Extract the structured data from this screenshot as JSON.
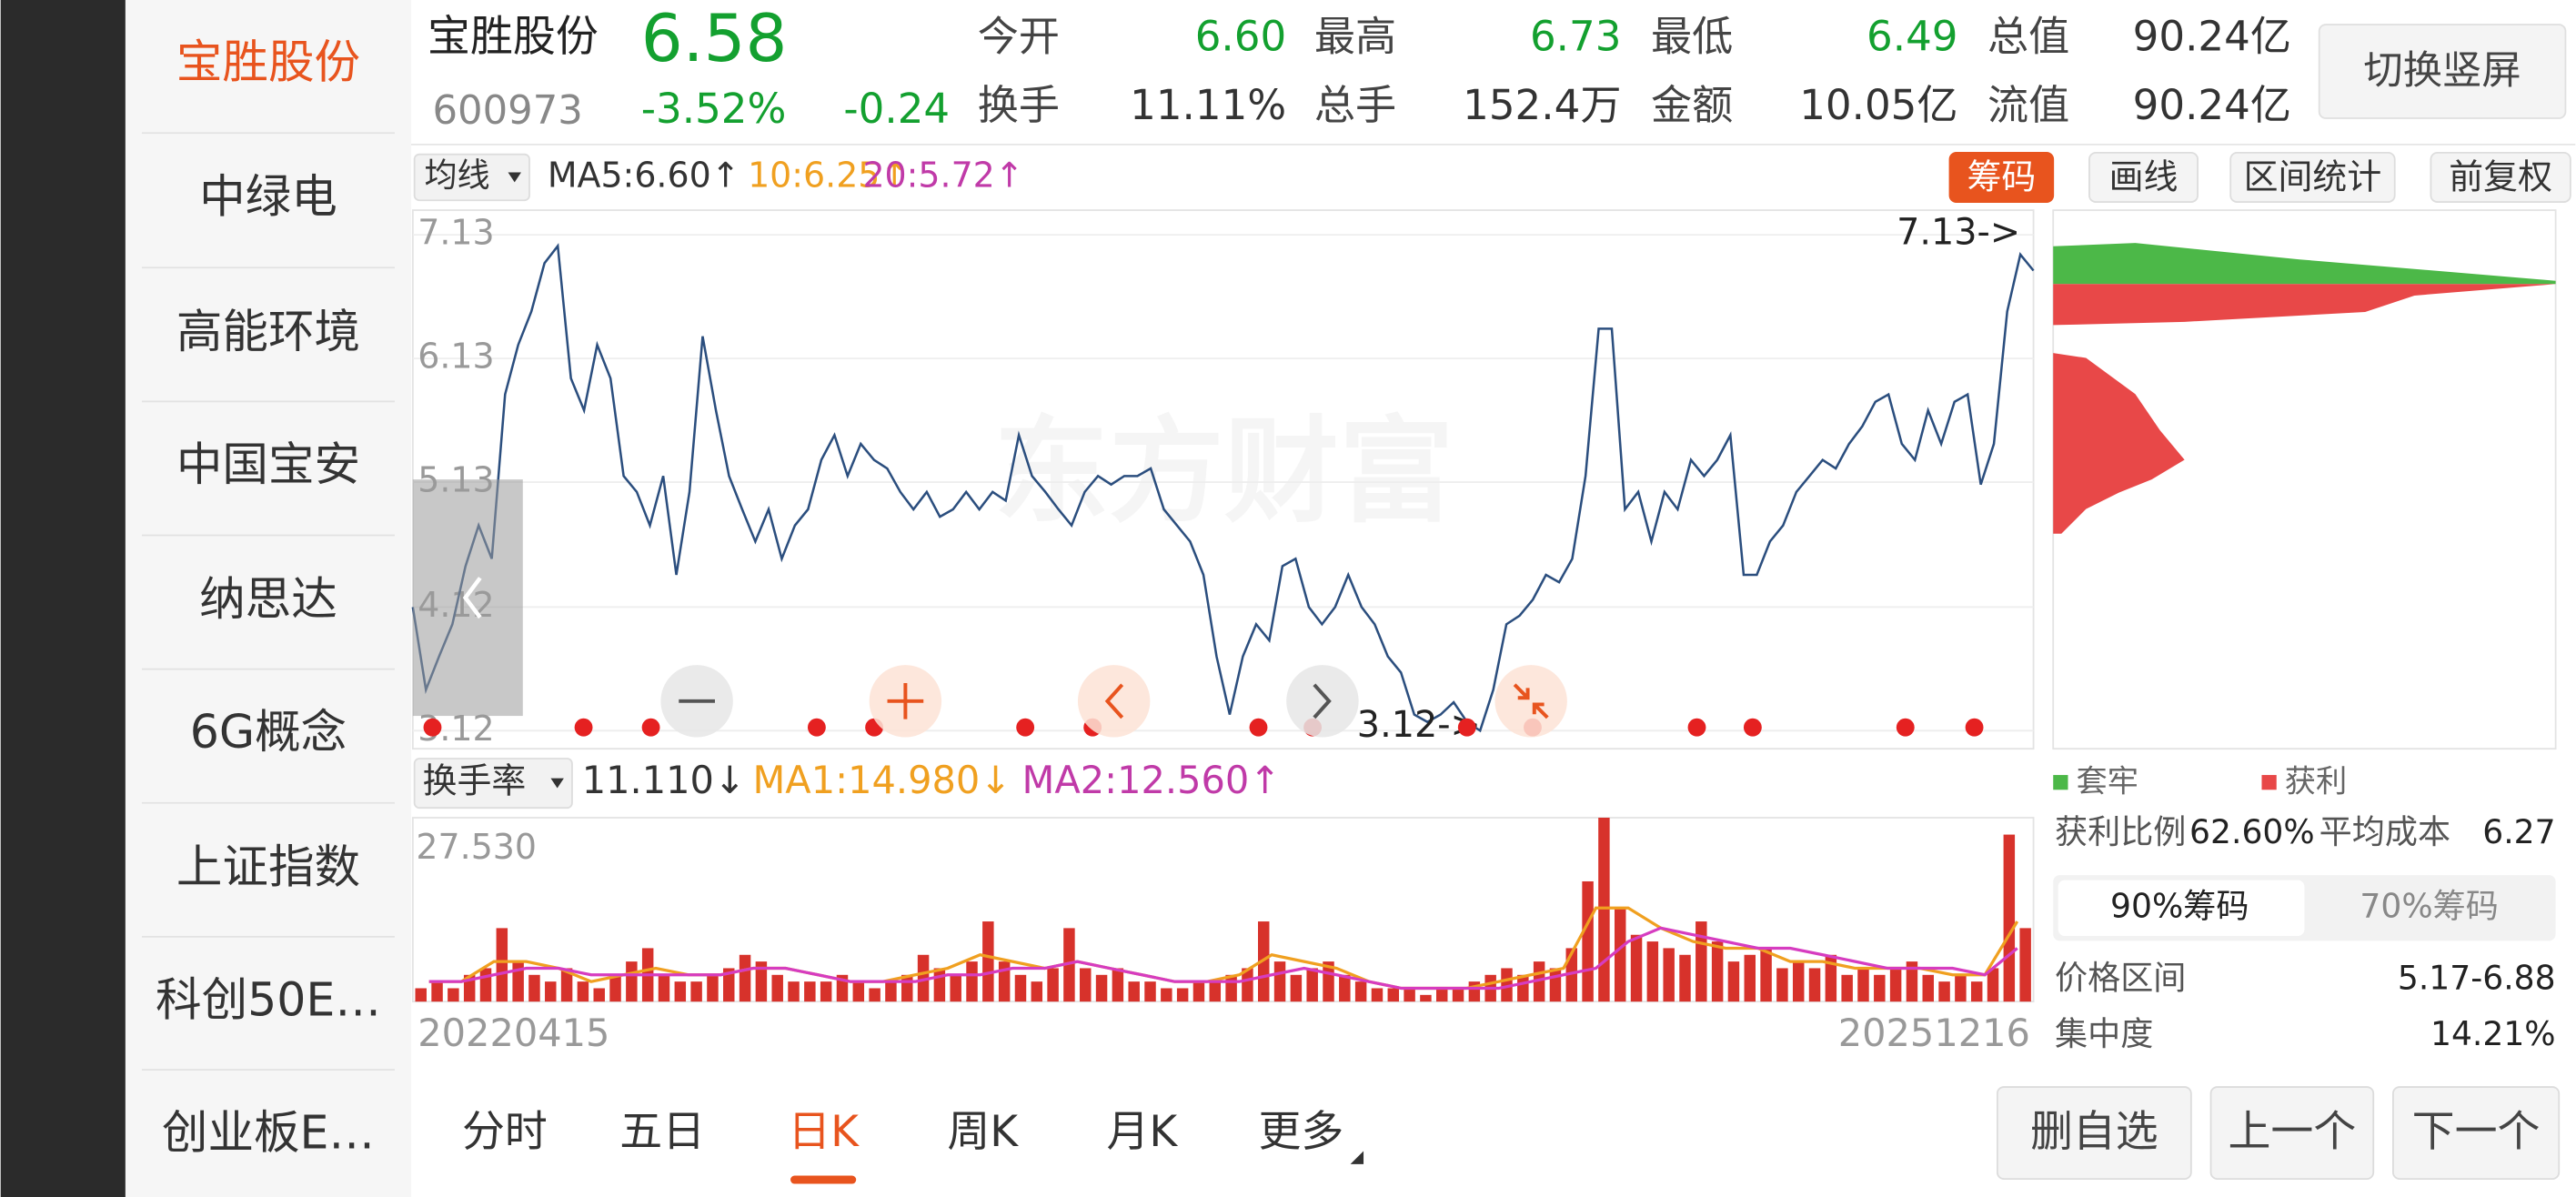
{
  "sidebar": [
    "宝胜股份",
    "中绿电",
    "高能环境",
    "中国宝安",
    "纳思达",
    "6G概念",
    "上证指数",
    "科创50E…",
    "创业板E…"
  ],
  "quote": {
    "name": "宝胜股份",
    "code": "600973",
    "price": "6.58",
    "change_pct": "-3.52%",
    "change": "-0.24"
  },
  "stats": [
    {
      "label": "今开",
      "value": "6.60"
    },
    {
      "label": "最高",
      "value": "6.73"
    },
    {
      "label": "最低",
      "value": "6.49"
    },
    {
      "label": "总值",
      "value": "90.24亿"
    },
    {
      "label": "换手",
      "value": "11.11%"
    },
    {
      "label": "总手",
      "value": "152.4万"
    },
    {
      "label": "金额",
      "value": "10.05亿"
    },
    {
      "label": "流值",
      "value": "90.24亿"
    }
  ],
  "orientation_button": "切换竖屏",
  "ma_bar": {
    "selector": "均线",
    "ma5": "MA5:6.60↑",
    "ma10": "10:6.25↑",
    "ma20": "20:5.72↑"
  },
  "tools": [
    "筹码",
    "画线",
    "区间统计",
    "前复权"
  ],
  "price_chart": {
    "watermark": "东方财富",
    "ylim": [
      3.12,
      7.13
    ],
    "yticks": [
      7.13,
      6.13,
      5.13,
      4.12,
      3.12
    ],
    "high_marker": "7.13->",
    "low_marker": "3.12->",
    "values": [
      4.12,
      3.45,
      3.72,
      3.98,
      4.45,
      4.78,
      4.51,
      5.84,
      6.24,
      6.51,
      6.9,
      7.04,
      5.97,
      5.71,
      6.24,
      5.97,
      5.18,
      5.05,
      4.78,
      5.18,
      4.38,
      5.05,
      6.31,
      5.71,
      5.18,
      4.91,
      4.65,
      4.91,
      4.51,
      4.78,
      4.91,
      5.31,
      5.51,
      5.18,
      5.44,
      5.31,
      5.24,
      5.05,
      4.91,
      5.05,
      4.85,
      4.91,
      5.05,
      4.91,
      5.05,
      4.98,
      5.51,
      5.18,
      5.05,
      4.91,
      4.78,
      5.05,
      5.18,
      5.11,
      5.18,
      5.18,
      5.24,
      4.91,
      4.78,
      4.65,
      4.38,
      3.72,
      3.25,
      3.72,
      3.98,
      3.85,
      4.45,
      4.51,
      4.12,
      3.98,
      4.12,
      4.38,
      4.12,
      3.98,
      3.72,
      3.59,
      3.25,
      3.19,
      3.25,
      3.35,
      3.19,
      3.12,
      3.45,
      3.98,
      4.05,
      4.18,
      4.38,
      4.32,
      4.51,
      5.18,
      6.37,
      6.37,
      4.91,
      5.05,
      4.65,
      5.05,
      4.91,
      5.31,
      5.18,
      5.31,
      5.51,
      4.38,
      4.38,
      4.65,
      4.78,
      5.05,
      5.18,
      5.31,
      5.24,
      5.44,
      5.58,
      5.78,
      5.84,
      5.44,
      5.31,
      5.71,
      5.44,
      5.78,
      5.84,
      5.11,
      5.44,
      6.51,
      6.97,
      6.84
    ]
  },
  "turnover_chart": {
    "selector": "换手率",
    "value": "11.110↓",
    "ma1_label": "MA1:14.980↓",
    "ma2_label": "MA2:12.560↑",
    "max_label": "27.530",
    "ylim": [
      0,
      27.53
    ],
    "values": [
      2,
      3,
      2,
      4,
      5,
      11,
      6,
      4,
      3,
      5,
      3,
      2,
      4,
      6,
      8,
      4,
      3,
      3,
      4,
      5,
      7,
      6,
      4,
      3,
      3,
      3,
      4,
      3,
      2,
      3,
      4,
      7,
      5,
      4,
      6,
      12,
      6,
      4,
      3,
      5,
      11,
      5,
      4,
      5,
      3,
      3,
      2,
      2,
      3,
      3,
      4,
      5,
      12,
      6,
      4,
      5,
      6,
      4,
      3,
      2,
      2,
      2,
      1,
      2,
      2,
      3,
      4,
      5,
      4,
      6,
      5,
      8,
      18,
      27.53,
      14,
      10,
      9,
      8,
      7,
      12,
      9,
      6,
      7,
      8,
      5,
      6,
      5,
      7,
      4,
      5,
      4,
      5,
      6,
      4,
      3,
      4,
      3,
      5,
      25,
      11
    ],
    "ma1": [
      3,
      3,
      6,
      6,
      5,
      3,
      4,
      5,
      4,
      4,
      5,
      5,
      4,
      3,
      3,
      4,
      5,
      7,
      6,
      5,
      6,
      5,
      4,
      3,
      3,
      4,
      7,
      6,
      5,
      3,
      2,
      2,
      2,
      3,
      4,
      5,
      14,
      14,
      11,
      9,
      8,
      8,
      6,
      6,
      5,
      5,
      5,
      4,
      4,
      12
    ],
    "ma2": [
      3,
      3,
      4,
      5,
      5,
      4,
      4,
      4,
      4,
      4,
      5,
      5,
      4,
      3,
      3,
      3,
      4,
      4,
      5,
      5,
      6,
      5,
      4,
      3,
      3,
      3,
      4,
      5,
      4,
      3,
      2,
      2,
      2,
      2,
      3,
      4,
      5,
      9,
      11,
      10,
      9,
      8,
      8,
      7,
      6,
      5,
      5,
      5,
      4,
      8
    ],
    "start_date": "20220415",
    "end_date": "20251216"
  },
  "chips": {
    "legend": [
      "套牢",
      "获利"
    ],
    "profit_ratio_label": "获利比例",
    "profit_ratio": "62.60%",
    "avg_cost_label": "平均成本",
    "avg_cost": "6.27",
    "tabs": [
      "90%筹码",
      "70%筹码"
    ],
    "rows": [
      {
        "label": "价格区间",
        "value": "5.17-6.88"
      },
      {
        "label": "集中度",
        "value": "14.21%"
      }
    ]
  },
  "bottom_tabs": [
    "分时",
    "五日",
    "日K",
    "周K",
    "月K",
    "更多"
  ],
  "bottom_buttons": [
    "删自选",
    "上一个",
    "下一个"
  ]
}
